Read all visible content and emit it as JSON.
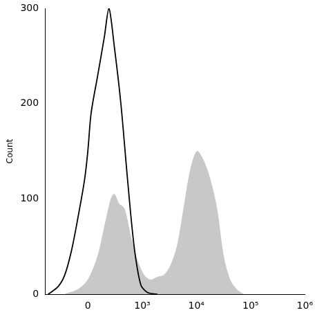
{
  "chart_data": {
    "type": "line",
    "y_label": "Count",
    "xlim": [
      -600,
      1000000
    ],
    "xticks": [
      0,
      {
        "value": 1000,
        "label": "10³"
      },
      {
        "value": 10000,
        "label": "10⁴"
      },
      {
        "value": 100000,
        "label": "10⁵"
      },
      {
        "value": 1000000,
        "label": "10⁶"
      }
    ],
    "ylim": [
      0,
      300
    ],
    "yticks": [
      0,
      100,
      200,
      300
    ],
    "grid": false,
    "series": [
      {
        "type": "area",
        "color": "#c8c8c8",
        "x": [
          -230,
          -87,
          0,
          87,
          152,
          230,
          275,
          348,
          447,
          604,
          810,
          1080,
          1434,
          1902,
          2520,
          3340,
          4420,
          5860,
          7760,
          10280,
          13620,
          18040,
          23880,
          31600,
          41800,
          55400,
          73400
        ],
        "values": [
          0,
          5,
          15,
          40,
          70,
          100,
          105,
          95,
          90,
          60,
          35,
          20,
          15,
          18,
          20,
          30,
          50,
          90,
          130,
          150,
          140,
          120,
          90,
          40,
          15,
          5,
          0
        ]
      },
      {
        "type": "line",
        "color": "#000000",
        "x": [
          -522,
          -326,
          -230,
          -152,
          -87,
          -28,
          0,
          28,
          87,
          152,
          204,
          275,
          382,
          522,
          700,
          936,
          1244,
          1902
        ],
        "values": [
          0,
          8,
          20,
          45,
          80,
          120,
          150,
          190,
          230,
          270,
          300,
          260,
          200,
          120,
          50,
          10,
          2,
          0
        ]
      }
    ]
  }
}
